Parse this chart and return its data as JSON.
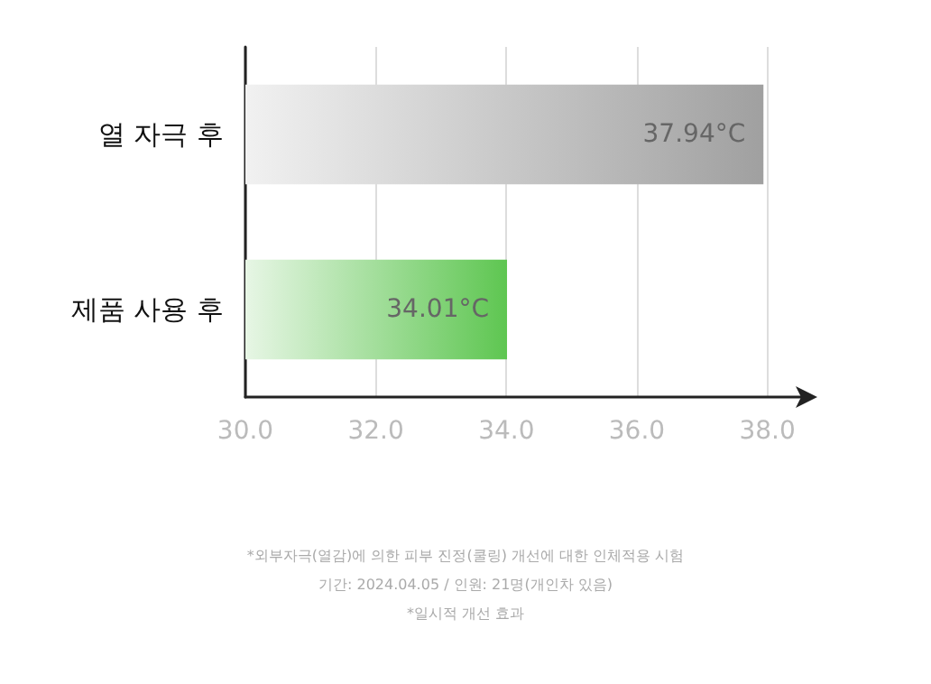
{
  "chart_data": {
    "type": "bar",
    "orientation": "horizontal",
    "categories": [
      "열 자극 후",
      "제품 사용 후"
    ],
    "values": [
      37.94,
      34.01
    ],
    "colors": [
      "#a0a0a0",
      "#5ec651"
    ],
    "value_labels": [
      "37.94°C",
      "34.01°C"
    ],
    "xlim": [
      30,
      38.6
    ],
    "xticks": [
      {
        "value": 30,
        "label": "30.0"
      },
      {
        "value": 32,
        "label": "32.0"
      },
      {
        "value": 34,
        "label": "34.0"
      },
      {
        "value": 36,
        "label": "36.0"
      },
      {
        "value": 38,
        "label": "38.0"
      }
    ],
    "grid": "x",
    "annotations": [
      "*외부자극(열감)에 의한 피부 진정(쿨링) 개선에 대한 인체적용 시험",
      "기간: 2024.04.05 / 인원: 21명(개인차 있음)",
      "*일시적 개선 효과"
    ]
  }
}
